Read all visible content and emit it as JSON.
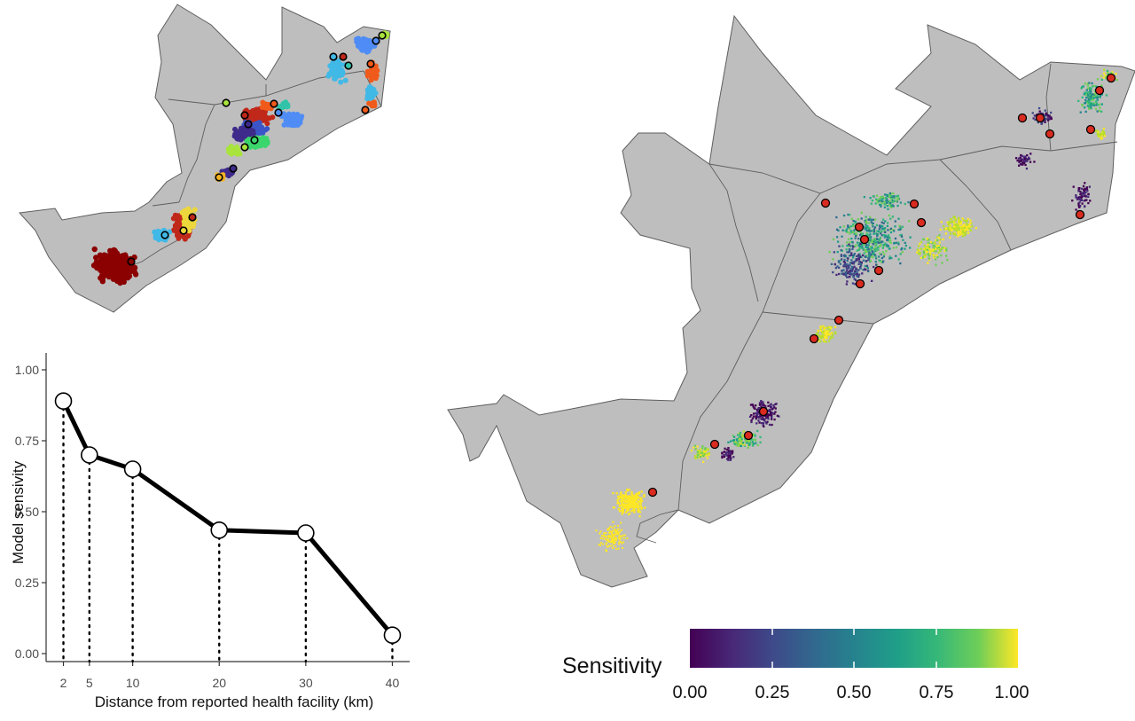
{
  "maps": {
    "left_map": {
      "points_palette": [
        "#8b0000",
        "#c0281a",
        "#f05a1a",
        "#f6b321",
        "#ecd73c",
        "#a8e43d",
        "#3bd66c",
        "#32c4a8",
        "#41b9e6",
        "#4f8cf5",
        "#3b55c8",
        "#3e2a8a",
        "#2a0a4e"
      ]
    },
    "right_map": {
      "legend_title": "Sensitivity",
      "legend_ticks": [
        "0.00",
        "0.25",
        "0.50",
        "0.75",
        "1.00"
      ]
    },
    "colors": {
      "land": "#bebebe",
      "border": "#5e5e5e",
      "facility": "#d92b1f"
    }
  },
  "chart_data": {
    "type": "line",
    "x": [
      2,
      5,
      10,
      20,
      30,
      40
    ],
    "values": [
      0.89,
      0.7,
      0.65,
      0.435,
      0.425,
      0.065
    ],
    "xlabel": "Distance from reported health facility (km)",
    "ylabel": "Model sensivity",
    "x_ticks": [
      "2",
      "5",
      "10",
      "20",
      "30",
      "40"
    ],
    "y_ticks": [
      "0.00",
      "0.25",
      "0.50",
      "0.75",
      "1.00"
    ],
    "xlim": [
      0,
      42
    ],
    "ylim": [
      0,
      1
    ],
    "grid": false,
    "vertical_guides": "dotted"
  }
}
